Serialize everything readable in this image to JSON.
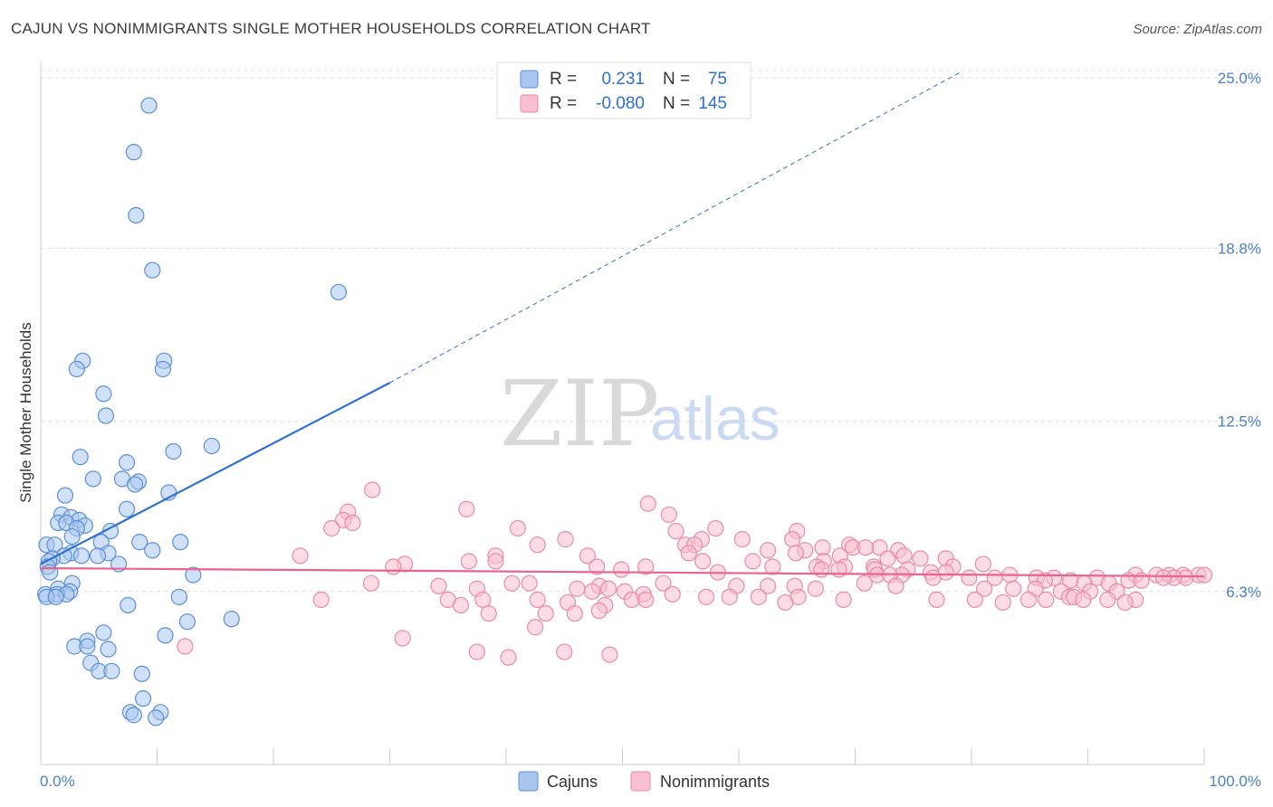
{
  "title": "CAJUN VS NONIMMIGRANTS SINGLE MOTHER HOUSEHOLDS CORRELATION CHART",
  "source": "Source: ZipAtlas.com",
  "watermark": {
    "zip": "ZIP",
    "atlas": "atlas"
  },
  "colors": {
    "cajun_fill": "#a9c6ee",
    "cajun_stroke": "#5b8fd6",
    "cajun_line": "#2e6fd0",
    "nonimm_fill": "#f7bfd0",
    "nonimm_stroke": "#e88aa8",
    "nonimm_line": "#e6648f",
    "grid": "#dddddd",
    "tick_text": "#4a7fd0"
  },
  "legend_top": {
    "rows": [
      {
        "r_label": "R =",
        "r_value": "0.231",
        "n_label": "N =",
        "n_value": "75"
      },
      {
        "r_label": "R =",
        "r_value": "-0.080",
        "n_label": "N =",
        "n_value": "145"
      }
    ]
  },
  "legend_bottom": [
    "Cajuns",
    "Nonimmigrants"
  ],
  "chart_data": {
    "type": "scatter",
    "title": "CAJUN VS NONIMMIGRANTS SINGLE MOTHER HOUSEHOLDS CORRELATION CHART",
    "xlabel": "",
    "ylabel": "Single Mother Households",
    "x_tick_labels": [
      "0.0%",
      "100.0%"
    ],
    "y_tick_labels": [
      "6.3%",
      "12.5%",
      "18.8%",
      "25.0%"
    ],
    "y_ticks": [
      6.3,
      12.5,
      18.8,
      25.0
    ],
    "xlim": [
      0,
      100
    ],
    "ylim": [
      0,
      25.6
    ],
    "grid": true,
    "legend_position": "top-center",
    "series": [
      {
        "name": "Cajuns",
        "R": 0.231,
        "N": 75,
        "trend": {
          "x0": 0,
          "y0": 7.3,
          "x1": 30,
          "y1": 13.9,
          "dashed_to_x": 79,
          "dashed_to_y": 25.2
        },
        "points": [
          [
            9.3,
            24.0
          ],
          [
            8.0,
            22.3
          ],
          [
            8.2,
            20.0
          ],
          [
            9.6,
            18.0
          ],
          [
            25.6,
            17.2
          ],
          [
            3.6,
            14.7
          ],
          [
            10.6,
            14.7
          ],
          [
            3.1,
            14.4
          ],
          [
            10.5,
            14.4
          ],
          [
            5.4,
            13.5
          ],
          [
            5.6,
            12.7
          ],
          [
            14.7,
            11.6
          ],
          [
            11.4,
            11.4
          ],
          [
            3.4,
            11.2
          ],
          [
            7.4,
            11.0
          ],
          [
            4.5,
            10.4
          ],
          [
            7.0,
            10.4
          ],
          [
            8.4,
            10.3
          ],
          [
            8.1,
            10.2
          ],
          [
            11.0,
            9.9
          ],
          [
            2.1,
            9.8
          ],
          [
            7.4,
            9.3
          ],
          [
            1.8,
            9.1
          ],
          [
            2.6,
            9.0
          ],
          [
            3.3,
            8.9
          ],
          [
            1.5,
            8.8
          ],
          [
            2.2,
            8.8
          ],
          [
            3.8,
            8.7
          ],
          [
            3.1,
            8.6
          ],
          [
            6.0,
            8.5
          ],
          [
            2.7,
            8.3
          ],
          [
            5.2,
            8.1
          ],
          [
            8.5,
            8.1
          ],
          [
            12.0,
            8.1
          ],
          [
            0.5,
            8.0
          ],
          [
            1.2,
            8.0
          ],
          [
            9.6,
            7.8
          ],
          [
            5.8,
            7.7
          ],
          [
            2.6,
            7.7
          ],
          [
            2.0,
            7.6
          ],
          [
            3.5,
            7.6
          ],
          [
            4.9,
            7.6
          ],
          [
            1.0,
            7.5
          ],
          [
            0.7,
            7.4
          ],
          [
            6.7,
            7.3
          ],
          [
            0.6,
            7.2
          ],
          [
            0.8,
            7.0
          ],
          [
            13.1,
            6.9
          ],
          [
            2.7,
            6.6
          ],
          [
            1.5,
            6.4
          ],
          [
            2.5,
            6.3
          ],
          [
            0.4,
            6.2
          ],
          [
            1.4,
            6.2
          ],
          [
            2.2,
            6.2
          ],
          [
            0.5,
            6.1
          ],
          [
            1.3,
            6.1
          ],
          [
            11.9,
            6.1
          ],
          [
            7.5,
            5.8
          ],
          [
            16.4,
            5.3
          ],
          [
            12.6,
            5.2
          ],
          [
            5.4,
            4.8
          ],
          [
            10.7,
            4.7
          ],
          [
            4.0,
            4.5
          ],
          [
            2.9,
            4.3
          ],
          [
            4.0,
            4.3
          ],
          [
            5.8,
            4.2
          ],
          [
            4.3,
            3.7
          ],
          [
            5.0,
            3.4
          ],
          [
            6.1,
            3.4
          ],
          [
            8.7,
            3.3
          ],
          [
            8.8,
            2.4
          ],
          [
            7.7,
            1.9
          ],
          [
            8.0,
            1.8
          ],
          [
            10.3,
            1.9
          ],
          [
            9.9,
            1.7
          ]
        ]
      },
      {
        "name": "Nonimmigrants",
        "R": -0.08,
        "N": 145,
        "trend": {
          "x0": 0,
          "y0": 7.15,
          "x1": 100,
          "y1": 6.85
        },
        "points": [
          [
            28.5,
            10.0
          ],
          [
            52.2,
            9.5
          ],
          [
            36.6,
            9.3
          ],
          [
            26.4,
            9.2
          ],
          [
            54.0,
            9.1
          ],
          [
            26.0,
            8.9
          ],
          [
            26.8,
            8.8
          ],
          [
            25.0,
            8.6
          ],
          [
            41.0,
            8.6
          ],
          [
            54.6,
            8.5
          ],
          [
            58.0,
            8.6
          ],
          [
            65.0,
            8.5
          ],
          [
            56.8,
            8.2
          ],
          [
            64.6,
            8.2
          ],
          [
            45.1,
            8.2
          ],
          [
            60.3,
            8.2
          ],
          [
            55.4,
            8.0
          ],
          [
            69.5,
            8.0
          ],
          [
            72.1,
            7.9
          ],
          [
            69.8,
            7.9
          ],
          [
            42.7,
            8.0
          ],
          [
            70.9,
            7.9
          ],
          [
            56.2,
            8.0
          ],
          [
            67.2,
            7.9
          ],
          [
            62.5,
            7.8
          ],
          [
            65.7,
            7.8
          ],
          [
            73.7,
            7.8
          ],
          [
            64.9,
            7.7
          ],
          [
            55.7,
            7.7
          ],
          [
            47.0,
            7.6
          ],
          [
            39.1,
            7.6
          ],
          [
            68.7,
            7.6
          ],
          [
            74.2,
            7.6
          ],
          [
            77.8,
            7.5
          ],
          [
            22.3,
            7.6
          ],
          [
            72.8,
            7.5
          ],
          [
            75.6,
            7.5
          ],
          [
            56.9,
            7.4
          ],
          [
            67.3,
            7.4
          ],
          [
            61.2,
            7.4
          ],
          [
            36.8,
            7.4
          ],
          [
            39.1,
            7.4
          ],
          [
            31.3,
            7.3
          ],
          [
            78.4,
            7.2
          ],
          [
            81.0,
            7.3
          ],
          [
            52.0,
            7.2
          ],
          [
            62.9,
            7.2
          ],
          [
            66.7,
            7.2
          ],
          [
            69.1,
            7.2
          ],
          [
            71.6,
            7.2
          ],
          [
            30.3,
            7.2
          ],
          [
            47.8,
            7.2
          ],
          [
            49.9,
            7.1
          ],
          [
            71.7,
            7.1
          ],
          [
            68.6,
            7.1
          ],
          [
            74.5,
            7.1
          ],
          [
            76.5,
            7.0
          ],
          [
            77.8,
            7.0
          ],
          [
            71.9,
            6.9
          ],
          [
            74.0,
            6.9
          ],
          [
            67.1,
            7.1
          ],
          [
            73.0,
            6.9
          ],
          [
            58.2,
            7.0
          ],
          [
            79.8,
            6.8
          ],
          [
            83.3,
            6.9
          ],
          [
            76.7,
            6.8
          ],
          [
            82.0,
            6.8
          ],
          [
            87.1,
            6.8
          ],
          [
            85.6,
            6.8
          ],
          [
            94.1,
            6.9
          ],
          [
            97.0,
            6.9
          ],
          [
            98.2,
            6.9
          ],
          [
            99.5,
            6.9
          ],
          [
            100.0,
            6.9
          ],
          [
            95.9,
            6.9
          ],
          [
            90.8,
            6.8
          ],
          [
            93.5,
            6.7
          ],
          [
            98.4,
            6.8
          ],
          [
            97.4,
            6.8
          ],
          [
            96.5,
            6.8
          ],
          [
            94.6,
            6.7
          ],
          [
            86.3,
            6.7
          ],
          [
            88.5,
            6.7
          ],
          [
            89.7,
            6.6
          ],
          [
            91.8,
            6.6
          ],
          [
            28.4,
            6.6
          ],
          [
            42.0,
            6.6
          ],
          [
            48.0,
            6.5
          ],
          [
            53.5,
            6.6
          ],
          [
            70.8,
            6.6
          ],
          [
            73.5,
            6.5
          ],
          [
            59.8,
            6.5
          ],
          [
            62.5,
            6.5
          ],
          [
            64.8,
            6.5
          ],
          [
            66.6,
            6.4
          ],
          [
            81.1,
            6.4
          ],
          [
            83.6,
            6.4
          ],
          [
            85.5,
            6.4
          ],
          [
            87.7,
            6.3
          ],
          [
            90.2,
            6.3
          ],
          [
            92.5,
            6.3
          ],
          [
            34.2,
            6.5
          ],
          [
            46.1,
            6.4
          ],
          [
            48.8,
            6.4
          ],
          [
            50.2,
            6.3
          ],
          [
            37.5,
            6.4
          ],
          [
            40.5,
            6.6
          ],
          [
            47.4,
            6.3
          ],
          [
            51.8,
            6.2
          ],
          [
            54.3,
            6.2
          ],
          [
            59.2,
            6.1
          ],
          [
            61.7,
            6.1
          ],
          [
            65.1,
            6.1
          ],
          [
            57.2,
            6.1
          ],
          [
            88.4,
            6.1
          ],
          [
            88.8,
            6.1
          ],
          [
            86.4,
            6.0
          ],
          [
            84.9,
            6.0
          ],
          [
            89.6,
            6.0
          ],
          [
            91.7,
            6.0
          ],
          [
            94.1,
            6.0
          ],
          [
            93.2,
            5.9
          ],
          [
            80.3,
            6.0
          ],
          [
            82.7,
            5.9
          ],
          [
            77.0,
            6.0
          ],
          [
            69.0,
            6.0
          ],
          [
            24.1,
            6.0
          ],
          [
            35.0,
            6.0
          ],
          [
            38.0,
            6.0
          ],
          [
            42.7,
            6.0
          ],
          [
            45.3,
            5.9
          ],
          [
            48.5,
            5.8
          ],
          [
            50.8,
            6.0
          ],
          [
            52.0,
            6.0
          ],
          [
            64.0,
            5.9
          ],
          [
            36.1,
            5.8
          ],
          [
            38.5,
            5.5
          ],
          [
            43.4,
            5.5
          ],
          [
            45.9,
            5.5
          ],
          [
            48.0,
            5.6
          ],
          [
            42.5,
            5.0
          ],
          [
            31.1,
            4.6
          ],
          [
            12.4,
            4.3
          ],
          [
            37.5,
            4.1
          ],
          [
            40.2,
            3.9
          ],
          [
            45.0,
            4.1
          ],
          [
            48.9,
            4.0
          ]
        ]
      }
    ]
  }
}
